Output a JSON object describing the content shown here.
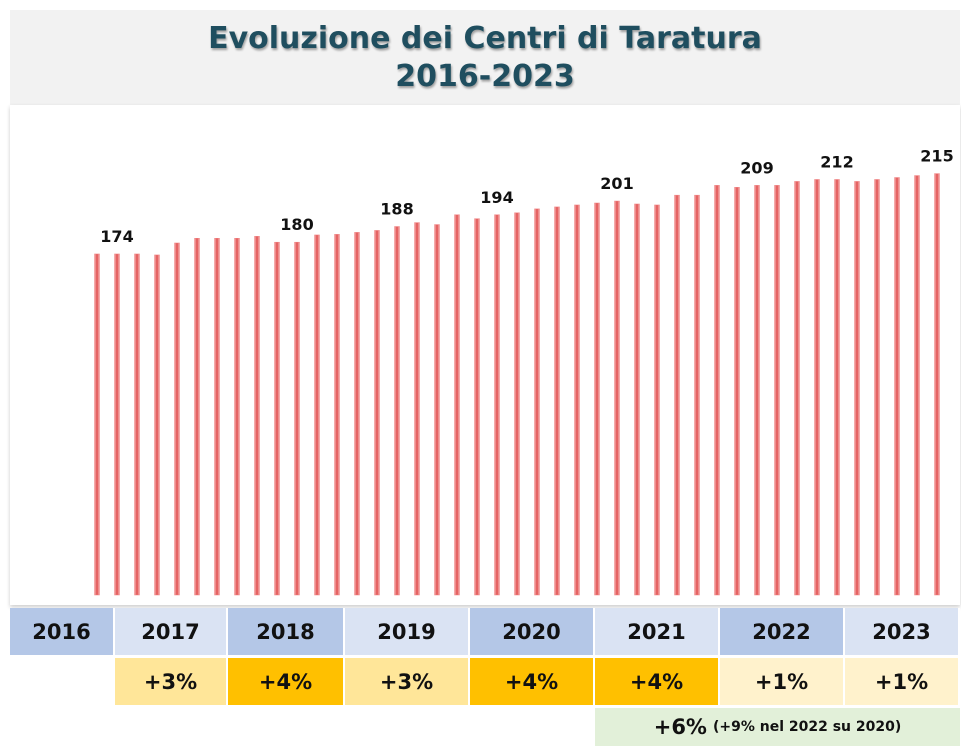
{
  "chart_data": {
    "type": "bar",
    "title": [
      "Evoluzione dei Centri di Taratura",
      "2016-2023"
    ],
    "values": [
      174,
      174,
      174,
      173.5,
      179.6,
      182,
      182,
      182,
      183,
      180,
      180,
      183.7,
      184,
      185,
      186,
      188,
      190,
      189,
      194,
      192,
      194,
      195,
      197,
      198,
      199,
      200,
      201,
      199.5,
      199,
      204,
      204,
      209,
      208,
      209,
      209,
      211,
      212,
      212,
      211,
      212,
      213,
      214,
      215
    ],
    "value_labels": [
      null,
      "174",
      null,
      null,
      null,
      null,
      null,
      null,
      null,
      null,
      "180",
      null,
      null,
      null,
      null,
      "188",
      null,
      null,
      null,
      null,
      "194",
      null,
      null,
      null,
      null,
      null,
      "201",
      null,
      null,
      null,
      null,
      null,
      null,
      "209",
      null,
      null,
      null,
      "212",
      null,
      null,
      null,
      null,
      "215"
    ],
    "color": "#f08080",
    "ylim": [
      0,
      250
    ]
  },
  "table": {
    "years": [
      "2016",
      "2017",
      "2018",
      "2019",
      "2020",
      "2021",
      "2022",
      "2023"
    ],
    "changes": [
      "+3%",
      "+4%",
      "+3%",
      "+4%",
      "+4%",
      "+1%",
      "+1%"
    ],
    "note": {
      "main": "+6%",
      "detail": "(+9% nel 2022 su 2020)"
    }
  }
}
